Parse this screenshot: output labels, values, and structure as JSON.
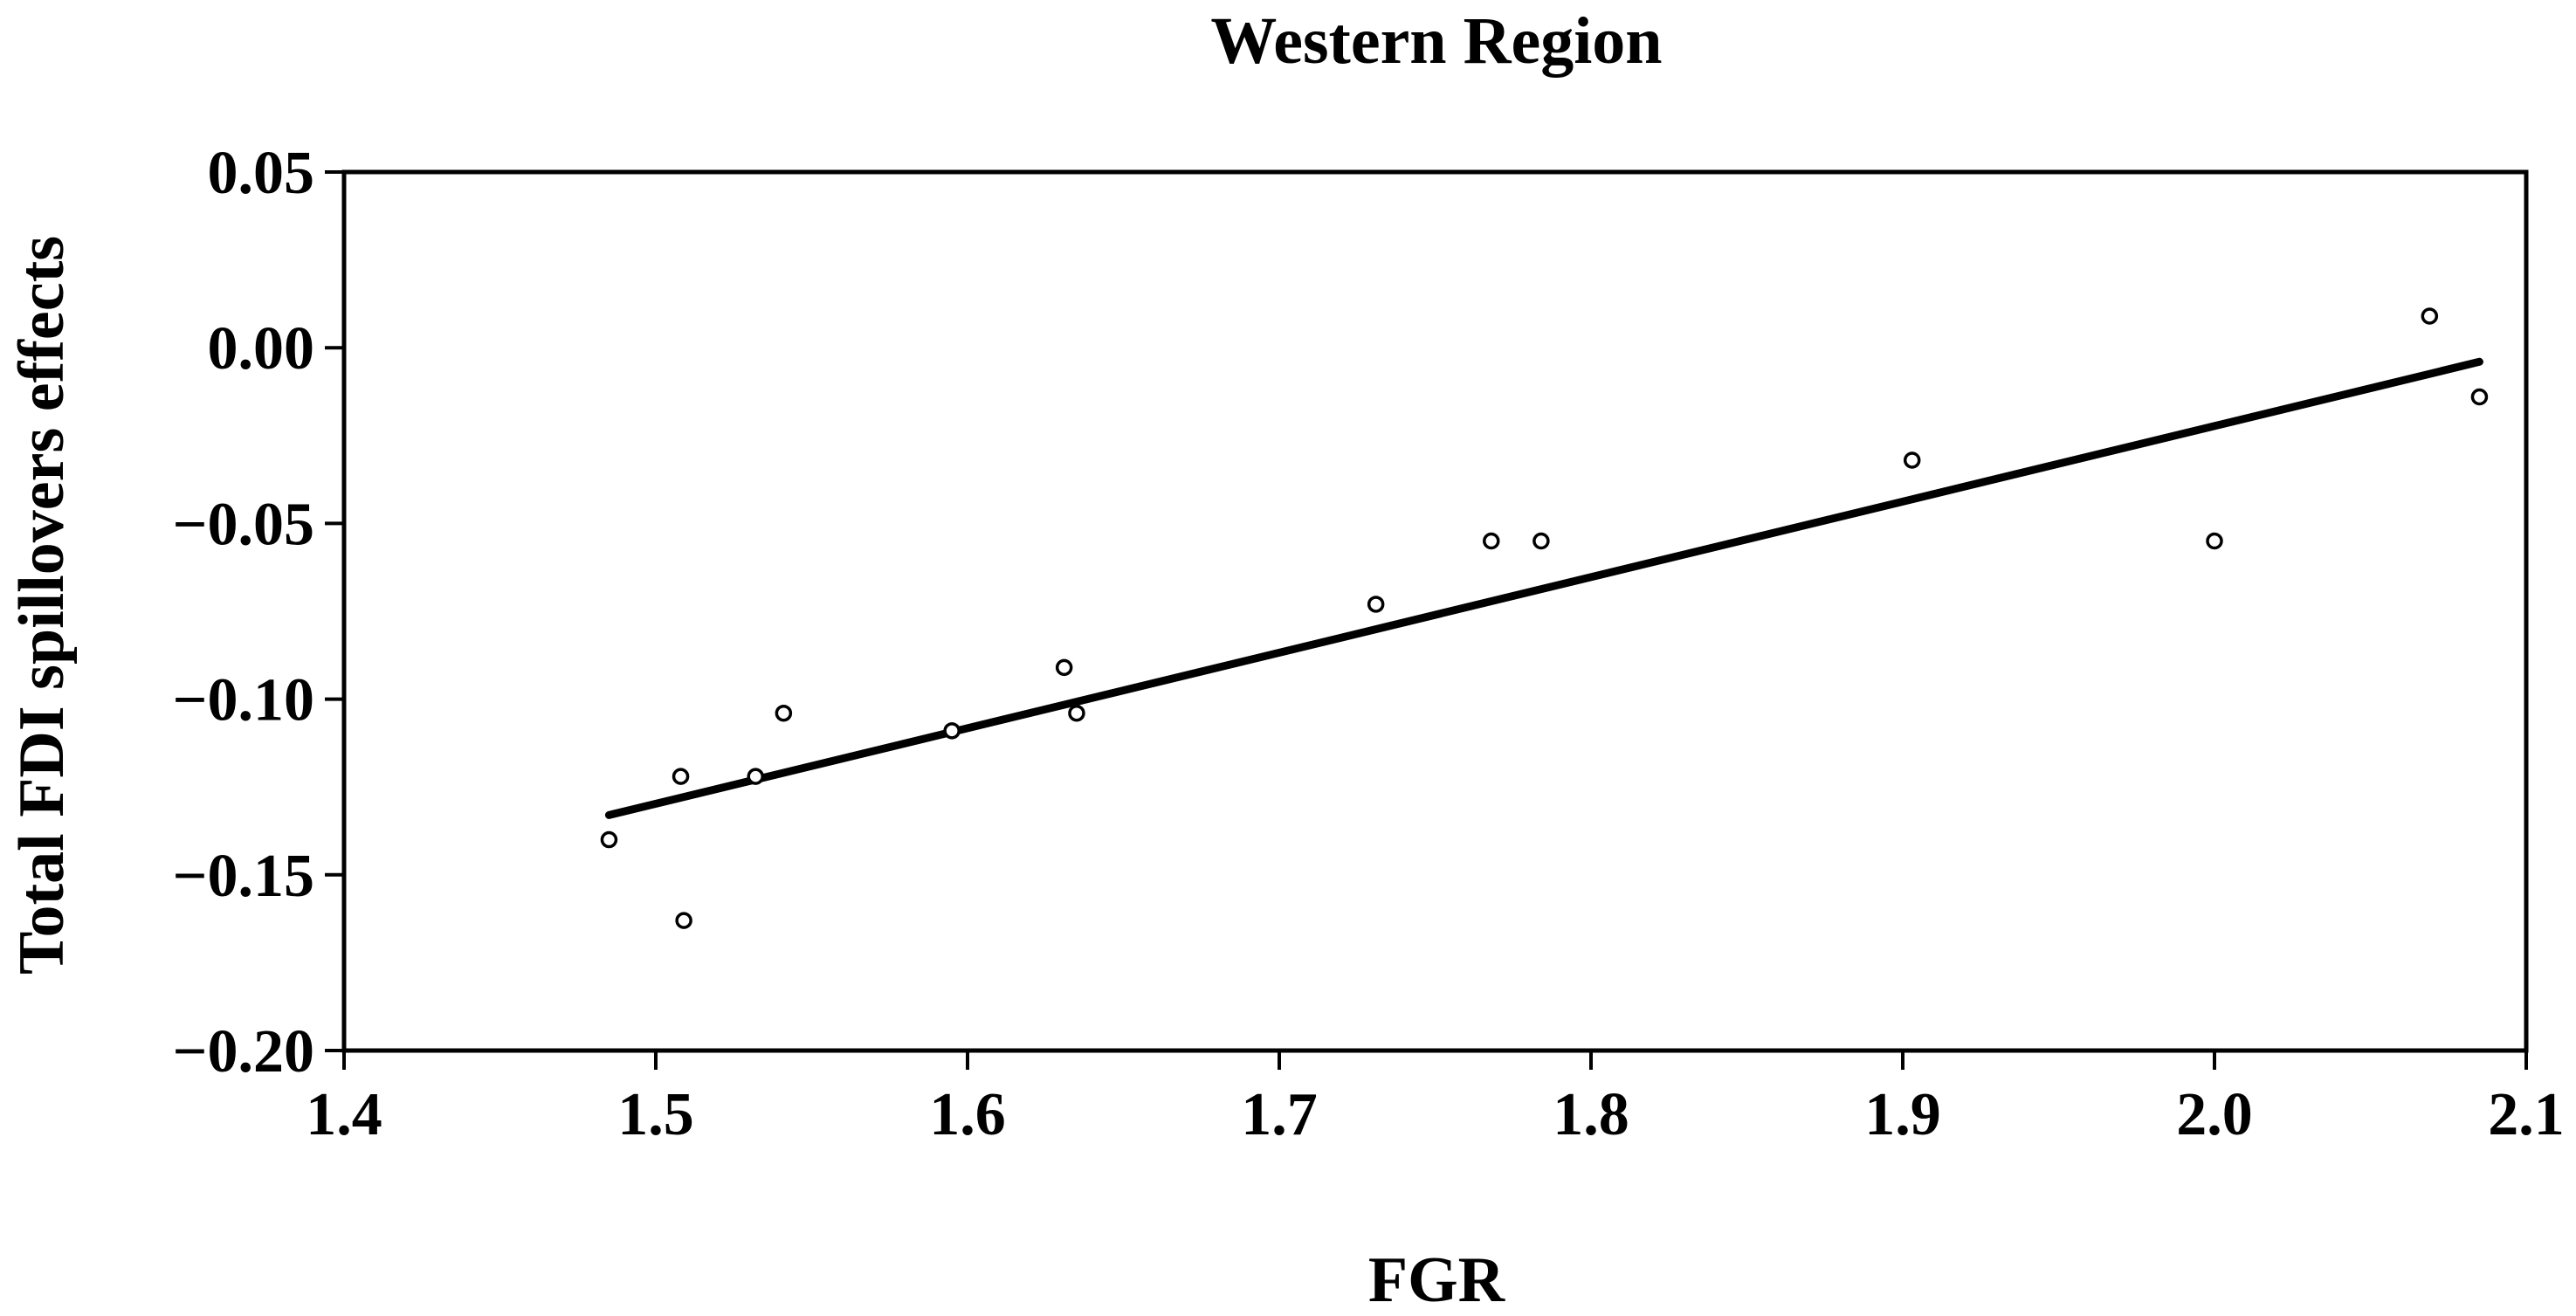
{
  "chart_data": {
    "type": "scatter",
    "title": "Western Region",
    "xlabel": "FGR",
    "ylabel": "Total FDI spillovers effects",
    "xlim": [
      1.4,
      2.1
    ],
    "ylim": [
      -0.2,
      0.05
    ],
    "x_ticks": [
      1.4,
      1.5,
      1.6,
      1.7,
      1.8,
      1.9,
      2.0,
      2.1
    ],
    "x_tick_labels": [
      "1.4",
      "1.5",
      "1.6",
      "1.7",
      "1.8",
      "1.9",
      "2.0",
      "2.1"
    ],
    "y_ticks": [
      0.05,
      0.0,
      -0.05,
      -0.1,
      -0.15,
      -0.2
    ],
    "y_tick_labels": [
      "0.05",
      "0.00",
      "−0.05",
      "−0.10",
      "−0.15",
      "−0.20"
    ],
    "grid": false,
    "legend": false,
    "series": [
      {
        "type": "scatter",
        "marker": "open-circle",
        "points": [
          {
            "x": 1.485,
            "y": -0.14
          },
          {
            "x": 1.508,
            "y": -0.122
          },
          {
            "x": 1.509,
            "y": -0.163
          },
          {
            "x": 1.532,
            "y": -0.122
          },
          {
            "x": 1.541,
            "y": -0.104
          },
          {
            "x": 1.595,
            "y": -0.109
          },
          {
            "x": 1.631,
            "y": -0.091
          },
          {
            "x": 1.635,
            "y": -0.104
          },
          {
            "x": 1.731,
            "y": -0.073
          },
          {
            "x": 1.768,
            "y": -0.055
          },
          {
            "x": 1.784,
            "y": -0.055
          },
          {
            "x": 1.903,
            "y": -0.032
          },
          {
            "x": 2.0,
            "y": -0.055
          },
          {
            "x": 2.069,
            "y": 0.009
          },
          {
            "x": 2.085,
            "y": -0.014
          }
        ]
      },
      {
        "type": "line",
        "style": "fitted-regression",
        "points": [
          {
            "x": 1.485,
            "y": -0.133
          },
          {
            "x": 2.085,
            "y": -0.004
          }
        ]
      }
    ]
  }
}
